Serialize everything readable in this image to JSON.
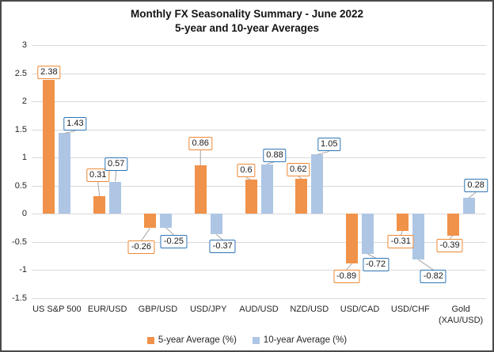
{
  "title": {
    "line1": "Monthly FX Seasonality Summary - June 2022",
    "line2": "5-year and 10-year Averages"
  },
  "chart_data": {
    "type": "bar",
    "title": "Monthly FX Seasonality Summary - June 2022\n5-year and 10-year Averages",
    "categories": [
      "US S&P 500",
      "EUR/USD",
      "GBP/USD",
      "USD/JPY",
      "AUD/USD",
      "NZD/USD",
      "USD/CAD",
      "USD/CHF",
      "Gold (XAU/USD)"
    ],
    "series": [
      {
        "name": "5-year Average (%)",
        "bar_color": "#F0924A",
        "label_border_color": "#ED8936",
        "values": [
          2.38,
          0.31,
          -0.26,
          0.86,
          0.6,
          0.62,
          -0.89,
          -0.31,
          -0.39
        ]
      },
      {
        "name": "10-year Average (%)",
        "bar_color": "#AEC6E4",
        "label_border_color": "#2E75B6",
        "values": [
          1.43,
          0.57,
          -0.25,
          -0.37,
          0.88,
          1.05,
          -0.72,
          -0.82,
          0.28
        ]
      }
    ],
    "ylim": [
      -1.5,
      3
    ],
    "ytick_step": 0.5,
    "yticks": [
      "3",
      "2.5",
      "2",
      "1.5",
      "1",
      "0.5",
      "0",
      "-0.5",
      "-1",
      "-1.5"
    ],
    "grid": true,
    "data_labels": true,
    "legend_position": "bottom",
    "colors": {
      "gridline": "#D9D9D9",
      "leader_line": "#A6A6A6",
      "label_box_fill": "#FFFFFF",
      "text": "#262626",
      "frame": "#4A4A4A"
    }
  }
}
